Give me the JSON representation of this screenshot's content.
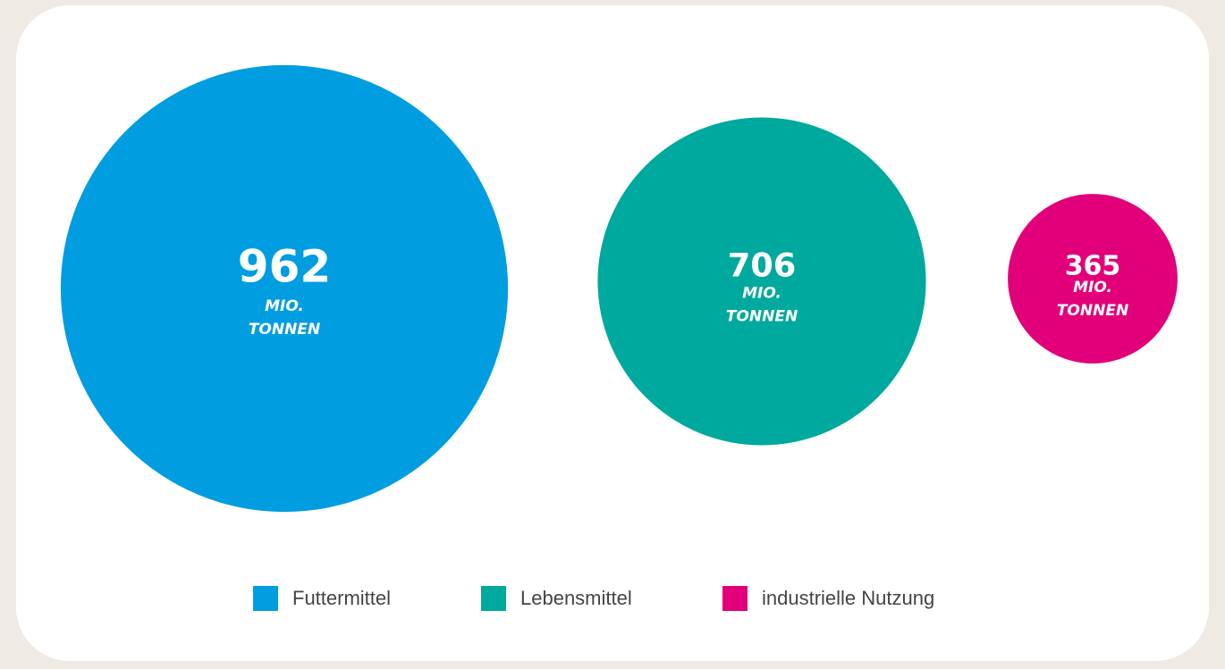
{
  "chart_data": {
    "type": "bubble",
    "categories": [
      "Futtermittel",
      "Lebensmittel",
      "industrielle Nutzung"
    ],
    "values": [
      962,
      706,
      365
    ],
    "colors": [
      "#009de0",
      "#00a99d",
      "#e2007a"
    ],
    "value_unit": [
      "MIO.",
      "TONNEN"
    ]
  }
}
